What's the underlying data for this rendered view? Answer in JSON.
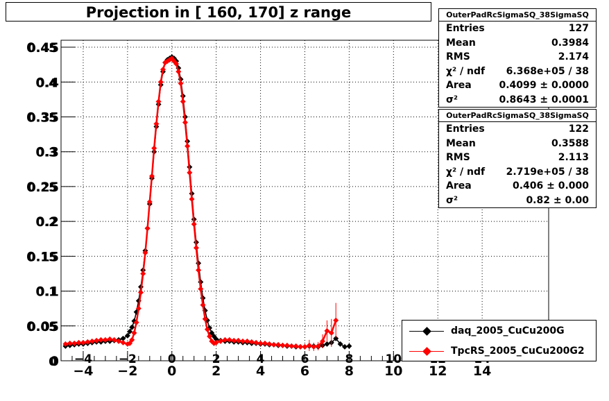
{
  "title": "Projection in [ 160, 170] z range",
  "stats_boxes": [
    {
      "name": "OuterPadRcSigmaSQ_38SigmaSQ",
      "rows": [
        {
          "key": "Entries",
          "value": "127"
        },
        {
          "key": "Mean",
          "value": "0.3984"
        },
        {
          "key": "RMS",
          "value": "2.174"
        },
        {
          "key": "χ² / ndf",
          "value": "6.368e+05 / 38"
        },
        {
          "key": "Area",
          "value": "0.4099 ± 0.0000"
        },
        {
          "key": "σ²",
          "value": "0.8643 ± 0.0001"
        }
      ]
    },
    {
      "name": "OuterPadRcSigmaSQ_38SigmaSQ",
      "rows": [
        {
          "key": "Entries",
          "value": "122"
        },
        {
          "key": "Mean",
          "value": "0.3588"
        },
        {
          "key": "RMS",
          "value": "2.113"
        },
        {
          "key": "χ² / ndf",
          "value": "2.719e+05 / 38"
        },
        {
          "key": "Area",
          "value": "0.406 ± 0.000"
        },
        {
          "key": "σ²",
          "value": "0.82 ± 0.00"
        }
      ]
    }
  ],
  "legend": [
    {
      "label": "daq_2005_CuCu200G",
      "color": "#000000"
    },
    {
      "label": "TpcRS_2005_CuCu200G2",
      "color": "#ff0000"
    }
  ],
  "chart_data": {
    "type": "scatter",
    "title": "Projection in [ 160, 170] z range",
    "xlabel": "",
    "ylabel": "",
    "xlim": [
      -5,
      17
    ],
    "ylim": [
      0,
      0.46
    ],
    "grid": true,
    "legend_position": "bottom-right",
    "x_ticks": [
      "−4",
      "−2",
      "0",
      "2",
      "4",
      "6",
      "8",
      "10",
      "12",
      "14"
    ],
    "x_tick_values": [
      -4,
      -2,
      0,
      2,
      4,
      6,
      8,
      10,
      12,
      14
    ],
    "x_secondary_ticks": [
      "−4",
      "−2",
      "0",
      "2",
      "4",
      "6",
      "8",
      "10",
      "12",
      "14"
    ],
    "y_ticks": [
      "0",
      "0.05",
      "0.1",
      "0.15",
      "0.2",
      "0.25",
      "0.3",
      "0.35",
      "0.4",
      "0.45"
    ],
    "y_tick_values": [
      0,
      0.05,
      0.1,
      0.15,
      0.2,
      0.25,
      0.3,
      0.35,
      0.4,
      0.45
    ],
    "y_secondary_ticks": [
      "0",
      "0.05",
      "0.1",
      "0.15",
      "0.2",
      "0.25",
      "0.3",
      "0.35",
      "0.4",
      "0.45"
    ],
    "series": [
      {
        "name": "daq_2005_CuCu200G",
        "color": "#000000",
        "fit_color": "#000000",
        "x": [
          -4.8,
          -4.6,
          -4.4,
          -4.2,
          -4.0,
          -3.8,
          -3.6,
          -3.4,
          -3.2,
          -3.0,
          -2.8,
          -2.6,
          -2.4,
          -2.2,
          -2.0,
          -1.9,
          -1.8,
          -1.7,
          -1.6,
          -1.5,
          -1.4,
          -1.3,
          -1.2,
          -1.1,
          -1.0,
          -0.9,
          -0.8,
          -0.7,
          -0.6,
          -0.5,
          -0.4,
          -0.3,
          -0.2,
          -0.1,
          0.0,
          0.1,
          0.2,
          0.3,
          0.4,
          0.5,
          0.6,
          0.7,
          0.8,
          0.9,
          1.0,
          1.1,
          1.2,
          1.3,
          1.4,
          1.5,
          1.6,
          1.7,
          1.8,
          1.9,
          2.0,
          2.2,
          2.4,
          2.6,
          2.8,
          3.0,
          3.2,
          3.4,
          3.6,
          3.8,
          4.0,
          4.2,
          4.4,
          4.6,
          4.8,
          5.0,
          5.2,
          5.4,
          5.6,
          5.8,
          6.0,
          6.2,
          6.4,
          6.6,
          6.8,
          7.0,
          7.2,
          7.4,
          7.6,
          7.8,
          8.0
        ],
        "y": [
          0.021,
          0.022,
          0.023,
          0.024,
          0.024,
          0.025,
          0.026,
          0.027,
          0.027,
          0.028,
          0.028,
          0.029,
          0.03,
          0.032,
          0.036,
          0.042,
          0.048,
          0.057,
          0.07,
          0.086,
          0.106,
          0.13,
          0.158,
          0.19,
          0.225,
          0.262,
          0.3,
          0.336,
          0.368,
          0.396,
          0.415,
          0.428,
          0.432,
          0.434,
          0.436,
          0.434,
          0.43,
          0.42,
          0.404,
          0.38,
          0.35,
          0.315,
          0.278,
          0.24,
          0.203,
          0.17,
          0.14,
          0.113,
          0.09,
          0.072,
          0.058,
          0.047,
          0.04,
          0.035,
          0.031,
          0.029,
          0.028,
          0.028,
          0.027,
          0.027,
          0.026,
          0.026,
          0.025,
          0.025,
          0.024,
          0.024,
          0.023,
          0.023,
          0.022,
          0.022,
          0.021,
          0.021,
          0.02,
          0.02,
          0.02,
          0.021,
          0.021,
          0.02,
          0.022,
          0.024,
          0.026,
          0.032,
          0.024,
          0.02,
          0.021
        ]
      },
      {
        "name": "TpcRS_2005_CuCu200G2",
        "color": "#ff0000",
        "fit_color": "#ff0000",
        "x": [
          -4.8,
          -4.6,
          -4.4,
          -4.2,
          -4.0,
          -3.8,
          -3.6,
          -3.4,
          -3.2,
          -3.0,
          -2.8,
          -2.6,
          -2.4,
          -2.2,
          -2.0,
          -1.9,
          -1.8,
          -1.7,
          -1.6,
          -1.5,
          -1.4,
          -1.3,
          -1.2,
          -1.1,
          -1.0,
          -0.9,
          -0.8,
          -0.7,
          -0.6,
          -0.5,
          -0.4,
          -0.3,
          -0.2,
          -0.1,
          0.0,
          0.1,
          0.2,
          0.3,
          0.4,
          0.5,
          0.6,
          0.7,
          0.8,
          0.9,
          1.0,
          1.1,
          1.2,
          1.3,
          1.4,
          1.5,
          1.6,
          1.7,
          1.8,
          1.9,
          2.0,
          2.2,
          2.4,
          2.6,
          2.8,
          3.0,
          3.2,
          3.4,
          3.6,
          3.8,
          4.0,
          4.2,
          4.4,
          4.6,
          4.8,
          5.0,
          5.2,
          5.4,
          5.6,
          5.8,
          6.0,
          6.2,
          6.4,
          6.6,
          6.8,
          7.0,
          7.2,
          7.4
        ],
        "y": [
          0.024,
          0.025,
          0.025,
          0.026,
          0.026,
          0.027,
          0.028,
          0.029,
          0.03,
          0.03,
          0.031,
          0.03,
          0.028,
          0.026,
          0.024,
          0.025,
          0.03,
          0.04,
          0.055,
          0.075,
          0.098,
          0.125,
          0.155,
          0.19,
          0.228,
          0.265,
          0.305,
          0.34,
          0.372,
          0.4,
          0.418,
          0.428,
          0.43,
          0.432,
          0.434,
          0.43,
          0.426,
          0.415,
          0.398,
          0.372,
          0.342,
          0.308,
          0.27,
          0.232,
          0.196,
          0.162,
          0.13,
          0.103,
          0.08,
          0.06,
          0.045,
          0.035,
          0.028,
          0.025,
          0.026,
          0.028,
          0.03,
          0.03,
          0.029,
          0.029,
          0.028,
          0.028,
          0.027,
          0.026,
          0.025,
          0.025,
          0.024,
          0.023,
          0.023,
          0.022,
          0.022,
          0.021,
          0.021,
          0.02,
          0.02,
          0.022,
          0.02,
          0.021,
          0.028,
          0.043,
          0.04,
          0.058
        ],
        "y_err": [
          0,
          0,
          0,
          0,
          0,
          0,
          0,
          0,
          0,
          0,
          0,
          0,
          0,
          0,
          0,
          0,
          0,
          0,
          0,
          0,
          0,
          0,
          0,
          0,
          0,
          0,
          0,
          0,
          0,
          0,
          0,
          0,
          0,
          0,
          0,
          0,
          0,
          0,
          0,
          0,
          0,
          0,
          0,
          0,
          0,
          0,
          0,
          0,
          0,
          0,
          0,
          0,
          0,
          0,
          0,
          0,
          0,
          0,
          0,
          0,
          0,
          0,
          0,
          0,
          0,
          0,
          0,
          0,
          0,
          0,
          0,
          0,
          0,
          0,
          0.004,
          0.008,
          0.006,
          0.006,
          0.01,
          0.015,
          0.02,
          0.025
        ]
      }
    ]
  }
}
